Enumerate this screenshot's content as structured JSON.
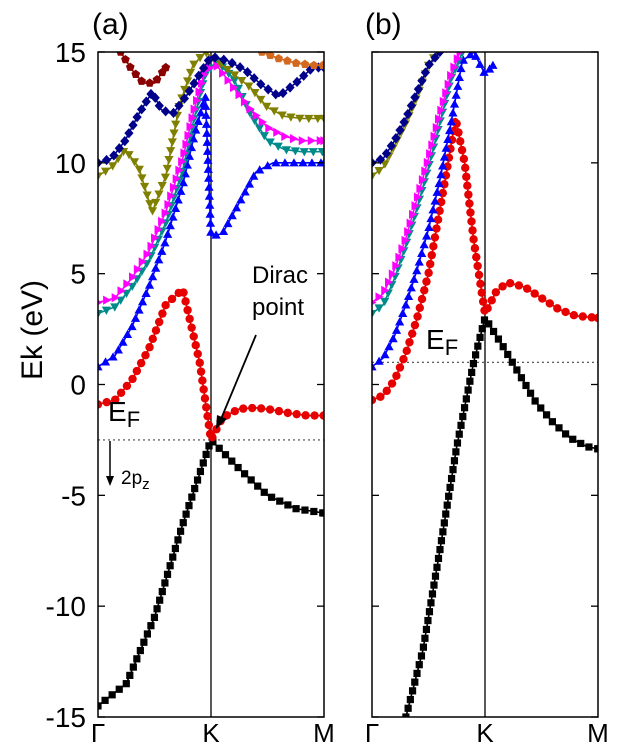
{
  "ylabel": "Ek (eV)",
  "y_ticks": [
    "15",
    "10",
    "5",
    "0",
    "-5",
    "-10",
    "-15"
  ],
  "chart_data": [
    {
      "type": "line",
      "panel_label": "(a)",
      "x_categories": [
        "Γ",
        "K",
        "M"
      ],
      "x_range": [
        0,
        2
      ],
      "ylim": [
        -15,
        15
      ],
      "fermi_level": -2.5,
      "annotations": {
        "fermi": "E",
        "fermi_sub": "F",
        "dirac_line1": "Dirac",
        "dirac_line2": "point",
        "orbital": "2p",
        "orbital_sub": "z"
      },
      "series": [
        {
          "color": "#000000",
          "marker": "square",
          "x": [
            0,
            0.25,
            0.5,
            0.75,
            1,
            1.25,
            1.5,
            1.75,
            2
          ],
          "y": [
            -14.5,
            -13.5,
            -10.5,
            -6.3,
            -2.5,
            -3.8,
            -5.0,
            -5.6,
            -5.8
          ]
        },
        {
          "color": "#e60000",
          "marker": "circle",
          "x": [
            0,
            0.15,
            0.3,
            0.45,
            0.6,
            0.75,
            0.9,
            1,
            1.1,
            1.25,
            1.4,
            1.55,
            1.7,
            1.85,
            2
          ],
          "y": [
            -0.9,
            -0.7,
            0.2,
            1.6,
            3.6,
            4.3,
            1.0,
            -2.5,
            -1.5,
            -1.1,
            -1.05,
            -1.15,
            -1.3,
            -1.4,
            -1.4
          ]
        },
        {
          "color": "#0000ff",
          "marker": "triangle-up",
          "x": [
            0,
            0.15,
            0.3,
            0.45,
            0.6,
            0.75,
            0.85,
            0.95,
            1,
            1.1,
            1.25,
            1.4,
            1.55,
            1.7,
            1.85,
            2
          ],
          "y": [
            0.8,
            1.3,
            2.6,
            4.4,
            6.5,
            9.0,
            11.2,
            13.0,
            6.7,
            6.8,
            8.2,
            9.6,
            10.0,
            10.0,
            10.0,
            10.0
          ]
        },
        {
          "color": "#008b8b",
          "marker": "triangle-down",
          "x": [
            0,
            0.15,
            0.3,
            0.45,
            0.6,
            0.75,
            0.85,
            0.95,
            1.05,
            1.2,
            1.35,
            1.5,
            1.65,
            1.8,
            2
          ],
          "y": [
            3.2,
            3.5,
            4.4,
            5.6,
            7.3,
            9.7,
            12.0,
            14.0,
            14.6,
            13.8,
            12.2,
            11.0,
            10.6,
            10.5,
            10.5
          ]
        },
        {
          "color": "#ff00ff",
          "marker": "triangle-right",
          "x": [
            0,
            0.15,
            0.3,
            0.45,
            0.6,
            0.75,
            0.85,
            0.95,
            1.05,
            1.2,
            1.35,
            1.5,
            1.65,
            1.8,
            2
          ],
          "y": [
            3.7,
            3.9,
            4.8,
            6.0,
            7.8,
            10.2,
            12.4,
            14.2,
            14.4,
            13.4,
            12.4,
            11.6,
            11.2,
            11.0,
            11.0
          ]
        },
        {
          "color": "#808000",
          "marker": "triangle-down",
          "x": [
            0,
            0.12,
            0.24,
            0.36,
            0.48,
            0.6,
            0.72,
            0.84,
            0.95,
            1.05,
            1.2,
            1.35,
            1.5,
            1.65,
            1.8,
            2
          ],
          "y": [
            9.4,
            9.8,
            10.6,
            9.8,
            7.8,
            9.4,
            12.6,
            14.4,
            15.0,
            14.6,
            14.0,
            13.4,
            12.5,
            12.1,
            12.0,
            12.0
          ]
        },
        {
          "color": "#00008b",
          "marker": "diamond",
          "x": [
            0,
            0.12,
            0.24,
            0.36,
            0.48,
            0.56,
            0.66,
            0.78,
            0.9,
            1.0,
            1.15,
            1.3,
            1.45,
            1.6,
            1.75,
            1.9,
            2
          ],
          "y": [
            10.0,
            10.2,
            11.0,
            12.2,
            13.2,
            12.4,
            12.2,
            13.0,
            14.0,
            14.8,
            14.6,
            14.2,
            13.5,
            13.0,
            13.6,
            14.3,
            14.3
          ]
        },
        {
          "color": "#8b0000",
          "marker": "pentagon",
          "x": [
            0.2,
            0.3,
            0.4,
            0.5,
            0.6
          ],
          "y": [
            15.0,
            14.2,
            13.6,
            13.6,
            14.3
          ]
        },
        {
          "color": "#d2691e",
          "marker": "pentagon",
          "x": [
            1.45,
            1.6,
            1.75,
            1.9,
            2
          ],
          "y": [
            15.0,
            14.7,
            14.5,
            14.4,
            14.4
          ]
        }
      ]
    },
    {
      "type": "line",
      "panel_label": "(b)",
      "x_categories": [
        "Γ",
        "K",
        "M"
      ],
      "x_range": [
        0,
        2
      ],
      "ylim": [
        -15,
        15
      ],
      "fermi_level": 1.0,
      "annotations": {
        "fermi": "E",
        "fermi_sub": "F"
      },
      "series": [
        {
          "color": "#000000",
          "marker": "square",
          "x": [
            0.3,
            0.45,
            0.6,
            0.75,
            0.9,
            1.0,
            1.15,
            1.3,
            1.45,
            1.6,
            1.75,
            1.9,
            2
          ],
          "y": [
            -15.0,
            -12.0,
            -7.5,
            -2.8,
            1.0,
            3.0,
            1.8,
            0.5,
            -0.8,
            -1.7,
            -2.4,
            -2.8,
            -2.9
          ]
        },
        {
          "color": "#e60000",
          "marker": "circle",
          "x": [
            0,
            0.1,
            0.2,
            0.3,
            0.4,
            0.5,
            0.58,
            0.66,
            0.74,
            0.82,
            0.9,
            1.0,
            1.1,
            1.2,
            1.35,
            1.5,
            1.65,
            1.8,
            2
          ],
          "y": [
            -0.7,
            -0.5,
            0.2,
            1.4,
            3.0,
            5.0,
            7.3,
            9.6,
            12.0,
            10.0,
            6.5,
            3.2,
            4.2,
            4.6,
            4.4,
            3.9,
            3.4,
            3.1,
            3.0
          ]
        },
        {
          "color": "#0000ff",
          "marker": "triangle-up",
          "x": [
            0,
            0.1,
            0.2,
            0.3,
            0.4,
            0.5,
            0.6,
            0.7,
            0.8,
            0.9,
            1.0,
            1.07
          ],
          "y": [
            0.8,
            1.2,
            2.2,
            3.6,
            5.2,
            7.0,
            9.2,
            11.8,
            14.6,
            15.0,
            14.0,
            14.4
          ]
        },
        {
          "color": "#008b8b",
          "marker": "triangle-down",
          "x": [
            0,
            0.1,
            0.2,
            0.3,
            0.4,
            0.5,
            0.6,
            0.7,
            0.8
          ],
          "y": [
            3.2,
            3.6,
            4.8,
            6.3,
            8.0,
            9.8,
            11.8,
            13.8,
            15.0
          ]
        },
        {
          "color": "#ff00ff",
          "marker": "triangle-right",
          "x": [
            0,
            0.1,
            0.2,
            0.3,
            0.4,
            0.5,
            0.6,
            0.7,
            0.78
          ],
          "y": [
            3.7,
            4.1,
            5.2,
            6.6,
            8.4,
            10.2,
            12.2,
            14.0,
            15.0
          ]
        },
        {
          "color": "#808000",
          "marker": "triangle-down",
          "x": [
            0,
            0.1,
            0.2,
            0.3,
            0.4,
            0.5,
            0.58
          ],
          "y": [
            9.4,
            9.8,
            10.8,
            11.8,
            13.0,
            14.4,
            15.0
          ]
        },
        {
          "color": "#00008b",
          "marker": "diamond",
          "x": [
            0,
            0.1,
            0.2,
            0.3,
            0.4,
            0.5,
            0.6
          ],
          "y": [
            10.0,
            10.2,
            11.0,
            12.0,
            13.2,
            14.4,
            15.0
          ]
        }
      ]
    }
  ]
}
